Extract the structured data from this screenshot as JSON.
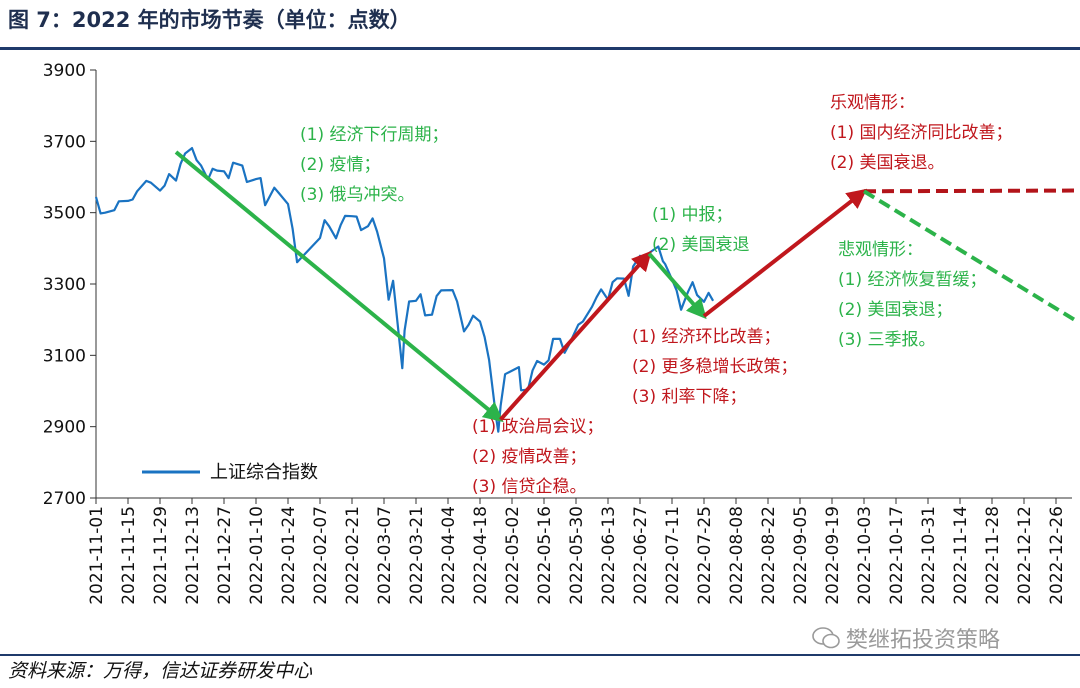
{
  "title": "图 7：2022 年的市场节奏（单位：点数）",
  "source": "资料来源：万得，信达证券研发中心",
  "watermark": "樊继拓投资策略",
  "chart_data": {
    "type": "line",
    "ylim": [
      2700,
      3900
    ],
    "yticks": [
      "3900",
      "3700",
      "3500",
      "3300",
      "3100",
      "2900",
      "2700"
    ],
    "xticks": [
      "2021-11-01",
      "2021-11-15",
      "2021-11-29",
      "2021-12-13",
      "2021-12-27",
      "2022-01-10",
      "2022-01-24",
      "2022-02-07",
      "2022-02-21",
      "2022-03-07",
      "2022-03-21",
      "2022-04-04",
      "2022-04-18",
      "2022-05-02",
      "2022-05-16",
      "2022-05-30",
      "2022-06-13",
      "2022-06-27",
      "2022-07-11",
      "2022-07-25",
      "2022-08-08",
      "2022-08-22",
      "2022-09-05",
      "2022-09-19",
      "2022-10-03",
      "2022-10-17",
      "2022-10-31",
      "2022-11-14",
      "2022-11-28",
      "2022-12-12",
      "2022-12-26"
    ],
    "legend": "上证综合指数",
    "legend_position": "bottom-left",
    "series": [
      {
        "name": "上证综合指数",
        "color": "#1a73c2",
        "points": [
          [
            "2021-11-01",
            3544
          ],
          [
            "2021-11-03",
            3498
          ],
          [
            "2021-11-05",
            3500
          ],
          [
            "2021-11-09",
            3507
          ],
          [
            "2021-11-11",
            3532
          ],
          [
            "2021-11-15",
            3533
          ],
          [
            "2021-11-17",
            3537
          ],
          [
            "2021-11-19",
            3560
          ],
          [
            "2021-11-23",
            3589
          ],
          [
            "2021-11-25",
            3584
          ],
          [
            "2021-11-29",
            3562
          ],
          [
            "2021-12-01",
            3576
          ],
          [
            "2021-12-03",
            3608
          ],
          [
            "2021-12-06",
            3590
          ],
          [
            "2021-12-08",
            3637
          ],
          [
            "2021-12-10",
            3666
          ],
          [
            "2021-12-13",
            3681
          ],
          [
            "2021-12-15",
            3647
          ],
          [
            "2021-12-17",
            3632
          ],
          [
            "2021-12-20",
            3593
          ],
          [
            "2021-12-22",
            3623
          ],
          [
            "2021-12-24",
            3618
          ],
          [
            "2021-12-27",
            3616
          ],
          [
            "2021-12-29",
            3597
          ],
          [
            "2021-12-31",
            3640
          ],
          [
            "2022-01-04",
            3632
          ],
          [
            "2022-01-06",
            3586
          ],
          [
            "2022-01-10",
            3594
          ],
          [
            "2022-01-12",
            3597
          ],
          [
            "2022-01-14",
            3521
          ],
          [
            "2022-01-18",
            3570
          ],
          [
            "2022-01-20",
            3555
          ],
          [
            "2022-01-24",
            3524
          ],
          [
            "2022-01-26",
            3455
          ],
          [
            "2022-01-28",
            3361
          ],
          [
            "2022-02-07",
            3429
          ],
          [
            "2022-02-09",
            3479
          ],
          [
            "2022-02-11",
            3462
          ],
          [
            "2022-02-14",
            3428
          ],
          [
            "2022-02-16",
            3465
          ],
          [
            "2022-02-18",
            3491
          ],
          [
            "2022-02-21",
            3490
          ],
          [
            "2022-02-23",
            3489
          ],
          [
            "2022-02-25",
            3451
          ],
          [
            "2022-02-28",
            3462
          ],
          [
            "2022-03-02",
            3484
          ],
          [
            "2022-03-04",
            3447
          ],
          [
            "2022-03-07",
            3372
          ],
          [
            "2022-03-09",
            3256
          ],
          [
            "2022-03-11",
            3309
          ],
          [
            "2022-03-15",
            3064
          ],
          [
            "2022-03-16",
            3170
          ],
          [
            "2022-03-18",
            3251
          ],
          [
            "2022-03-21",
            3253
          ],
          [
            "2022-03-23",
            3271
          ],
          [
            "2022-03-25",
            3212
          ],
          [
            "2022-03-28",
            3214
          ],
          [
            "2022-03-30",
            3266
          ],
          [
            "2022-04-01",
            3282
          ],
          [
            "2022-04-06",
            3283
          ],
          [
            "2022-04-08",
            3251
          ],
          [
            "2022-04-11",
            3167
          ],
          [
            "2022-04-13",
            3186
          ],
          [
            "2022-04-15",
            3211
          ],
          [
            "2022-04-18",
            3195
          ],
          [
            "2022-04-20",
            3151
          ],
          [
            "2022-04-22",
            3087
          ],
          [
            "2022-04-25",
            2928
          ],
          [
            "2022-04-26",
            2886
          ],
          [
            "2022-04-27",
            2958
          ],
          [
            "2022-04-29",
            3047
          ],
          [
            "2022-05-05",
            3067
          ],
          [
            "2022-05-06",
            3002
          ],
          [
            "2022-05-09",
            3004
          ],
          [
            "2022-05-11",
            3058
          ],
          [
            "2022-05-13",
            3084
          ],
          [
            "2022-05-16",
            3074
          ],
          [
            "2022-05-18",
            3086
          ],
          [
            "2022-05-20",
            3146
          ],
          [
            "2022-05-23",
            3146
          ],
          [
            "2022-05-25",
            3107
          ],
          [
            "2022-05-27",
            3130
          ],
          [
            "2022-05-31",
            3186
          ],
          [
            "2022-06-02",
            3195
          ],
          [
            "2022-06-06",
            3236
          ],
          [
            "2022-06-08",
            3263
          ],
          [
            "2022-06-10",
            3285
          ],
          [
            "2022-06-13",
            3256
          ],
          [
            "2022-06-15",
            3305
          ],
          [
            "2022-06-17",
            3316
          ],
          [
            "2022-06-20",
            3315
          ],
          [
            "2022-06-22",
            3267
          ],
          [
            "2022-06-24",
            3349
          ],
          [
            "2022-06-27",
            3379
          ],
          [
            "2022-06-29",
            3361
          ],
          [
            "2022-07-01",
            3387
          ],
          [
            "2022-07-05",
            3405
          ],
          [
            "2022-07-07",
            3364
          ],
          [
            "2022-07-08",
            3356
          ],
          [
            "2022-07-11",
            3313
          ],
          [
            "2022-07-13",
            3282
          ],
          [
            "2022-07-15",
            3228
          ],
          [
            "2022-07-18",
            3278
          ],
          [
            "2022-07-20",
            3305
          ],
          [
            "2022-07-22",
            3269
          ],
          [
            "2022-07-25",
            3250
          ],
          [
            "2022-07-27",
            3275
          ],
          [
            "2022-07-29",
            3253
          ]
        ]
      }
    ],
    "arrows": [
      {
        "color": "#2cb34a",
        "from": [
          "2021-12-06",
          3670
        ],
        "to": [
          "2022-04-27",
          2920
        ]
      },
      {
        "color": "#c0171d",
        "from": [
          "2022-04-27",
          2920
        ],
        "to": [
          "2022-07-01",
          3385
        ]
      },
      {
        "color": "#2cb34a",
        "from": [
          "2022-07-01",
          3385
        ],
        "to": [
          "2022-07-25",
          3210
        ]
      },
      {
        "color": "#c0171d",
        "from": [
          "2022-07-25",
          3210
        ],
        "to": [
          "2022-10-03",
          3560
        ]
      }
    ],
    "dashed": [
      {
        "color": "#b3141a",
        "from": [
          "2022-10-03",
          3560
        ],
        "to": [
          "2023-01-03",
          3562
        ]
      },
      {
        "color": "#2cb34a",
        "from": [
          "2022-10-03",
          3560
        ],
        "to": [
          "2023-01-03",
          3200
        ]
      }
    ],
    "annotations": [
      {
        "color": "#2cb34a",
        "lines": [
          "(1) 经济下行周期；",
          "(2) 疫情；",
          "(3) 俄乌冲突。"
        ]
      },
      {
        "color": "#c0171d",
        "lines": [
          "(1)  政治局会议；",
          "(2)  疫情改善；",
          "(3) 信贷企稳。"
        ]
      },
      {
        "color": "#2cb34a",
        "lines": [
          "(1) 中报；",
          "(2) 美国衰退"
        ]
      },
      {
        "color": "#c0171d",
        "lines": [
          "(1)  经济环比改善；",
          "(2)  更多稳增长政策；",
          "(3)  利率下降；"
        ]
      },
      {
        "color": "#c0171d",
        "lines": [
          "乐观情形：",
          "(1) 国内经济同比改善；",
          "(2) 美国衰退。"
        ]
      },
      {
        "color": "#2cb34a",
        "lines": [
          "悲观情形：",
          "(1) 经济恢复暂缓；",
          "(2) 美国衰退；",
          "(3) 三季报。"
        ]
      }
    ]
  }
}
